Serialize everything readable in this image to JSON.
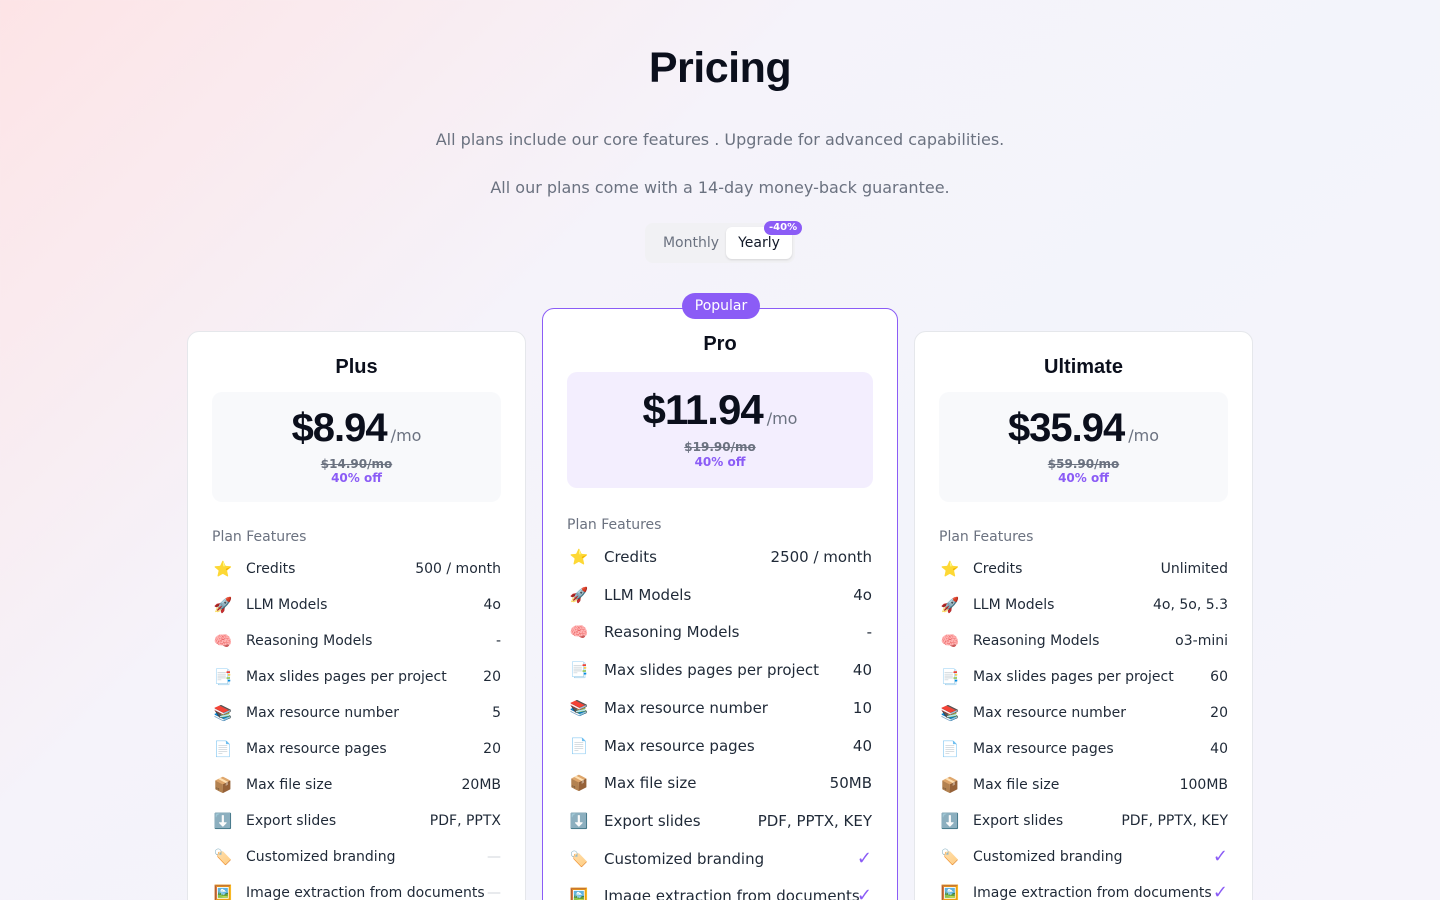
{
  "header": {
    "title": "Pricing",
    "subtitle1": "All plans include our core features . Upgrade for advanced capabilities.",
    "subtitle2": "All our plans come with a 14-day money-back guarantee."
  },
  "billing_toggle": {
    "monthly_label": "Monthly",
    "yearly_label": "Yearly",
    "selected": "Yearly",
    "discount_badge": "-40%"
  },
  "colors": {
    "accent": "#8b5cf6",
    "check": "#8b5cf6"
  },
  "plans": [
    {
      "name": "Plus",
      "price": "$8.94",
      "per": "/mo",
      "old_price": "$14.90/mo",
      "off": "40% off",
      "features_title": "Plan Features",
      "features": [
        {
          "icon": "star-icon",
          "glyph": "⭐",
          "label": "Credits",
          "value": "500 / month"
        },
        {
          "icon": "rocket-icon",
          "glyph": "🚀",
          "label": "LLM Models",
          "value": "4o"
        },
        {
          "icon": "brain-icon",
          "glyph": "🧠",
          "label": "Reasoning Models",
          "value": "-"
        },
        {
          "icon": "pages-icon",
          "glyph": "📑",
          "label": "Max slides pages per project",
          "value": "20"
        },
        {
          "icon": "books-icon",
          "glyph": "📚",
          "label": "Max resource number",
          "value": "5"
        },
        {
          "icon": "document-icon",
          "glyph": "📄",
          "label": "Max resource pages",
          "value": "20"
        },
        {
          "icon": "package-icon",
          "glyph": "📦",
          "label": "Max file size",
          "value": "20MB"
        },
        {
          "icon": "download-icon",
          "glyph": "⬇️",
          "label": "Export slides",
          "value": "PDF, PPTX"
        },
        {
          "icon": "tag-icon",
          "glyph": "🏷️",
          "label": "Customized branding",
          "value": "—",
          "kind": "dash"
        },
        {
          "icon": "image-icon",
          "glyph": "🖼️",
          "label": "Image extraction from documents",
          "value": "—",
          "kind": "dash"
        }
      ]
    },
    {
      "name": "Pro",
      "badge": "Popular",
      "price": "$11.94",
      "per": "/mo",
      "old_price": "$19.90/mo",
      "off": "40% off",
      "features_title": "Plan Features",
      "features": [
        {
          "icon": "star-icon",
          "glyph": "⭐",
          "label": "Credits",
          "value": "2500 / month"
        },
        {
          "icon": "rocket-icon",
          "glyph": "🚀",
          "label": "LLM Models",
          "value": "4o"
        },
        {
          "icon": "brain-icon",
          "glyph": "🧠",
          "label": "Reasoning Models",
          "value": "-"
        },
        {
          "icon": "pages-icon",
          "glyph": "📑",
          "label": "Max slides pages per project",
          "value": "40"
        },
        {
          "icon": "books-icon",
          "glyph": "📚",
          "label": "Max resource number",
          "value": "10"
        },
        {
          "icon": "document-icon",
          "glyph": "📄",
          "label": "Max resource pages",
          "value": "40"
        },
        {
          "icon": "package-icon",
          "glyph": "📦",
          "label": "Max file size",
          "value": "50MB"
        },
        {
          "icon": "download-icon",
          "glyph": "⬇️",
          "label": "Export slides",
          "value": "PDF, PPTX, KEY"
        },
        {
          "icon": "tag-icon",
          "glyph": "🏷️",
          "label": "Customized branding",
          "value": "✓",
          "kind": "check"
        },
        {
          "icon": "image-icon",
          "glyph": "🖼️",
          "label": "Image extraction from documents",
          "value": "✓",
          "kind": "check"
        }
      ]
    },
    {
      "name": "Ultimate",
      "price": "$35.94",
      "per": "/mo",
      "old_price": "$59.90/mo",
      "off": "40% off",
      "features_title": "Plan Features",
      "features": [
        {
          "icon": "star-icon",
          "glyph": "⭐",
          "label": "Credits",
          "value": "Unlimited"
        },
        {
          "icon": "rocket-icon",
          "glyph": "🚀",
          "label": "LLM Models",
          "value": "4o, 5o, 5.3"
        },
        {
          "icon": "brain-icon",
          "glyph": "🧠",
          "label": "Reasoning Models",
          "value": "o3-mini"
        },
        {
          "icon": "pages-icon",
          "glyph": "📑",
          "label": "Max slides pages per project",
          "value": "60"
        },
        {
          "icon": "books-icon",
          "glyph": "📚",
          "label": "Max resource number",
          "value": "20"
        },
        {
          "icon": "document-icon",
          "glyph": "📄",
          "label": "Max resource pages",
          "value": "40"
        },
        {
          "icon": "package-icon",
          "glyph": "📦",
          "label": "Max file size",
          "value": "100MB"
        },
        {
          "icon": "download-icon",
          "glyph": "⬇️",
          "label": "Export slides",
          "value": "PDF, PPTX, KEY"
        },
        {
          "icon": "tag-icon",
          "glyph": "🏷️",
          "label": "Customized branding",
          "value": "✓",
          "kind": "check"
        },
        {
          "icon": "image-icon",
          "glyph": "🖼️",
          "label": "Image extraction from documents",
          "value": "✓",
          "kind": "check"
        }
      ]
    }
  ]
}
